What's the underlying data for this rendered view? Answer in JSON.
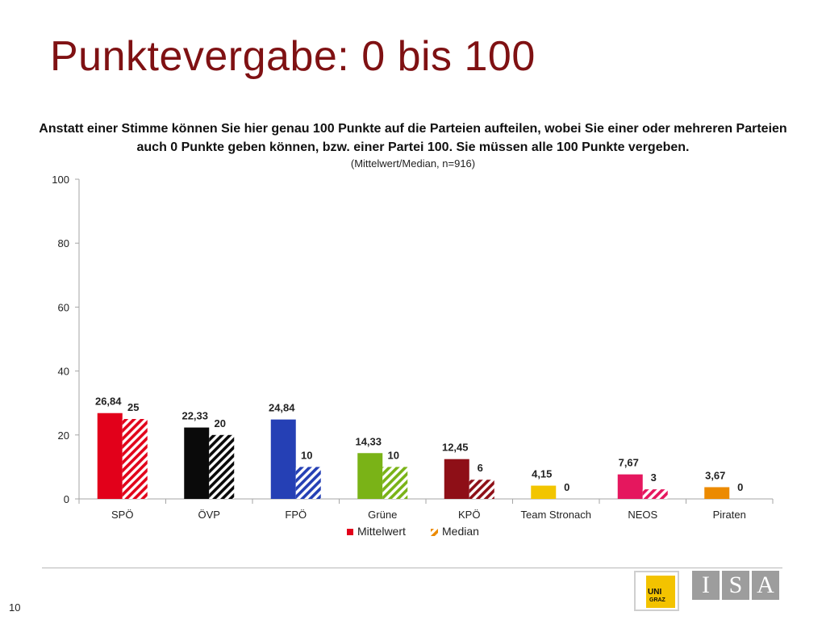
{
  "slide": {
    "title": "Punktevergabe: 0 bis 100",
    "page_number": "10"
  },
  "colors": {
    "title": "#7f1113",
    "series": [
      "#e2001a",
      "#0a0a0a",
      "#2540b5",
      "#7ab317",
      "#8e0f17",
      "#f2c500",
      "#e5175e",
      "#ec8a00"
    ]
  },
  "logos": {
    "uni": {
      "line1": "UNI",
      "line2": "GRAZ"
    },
    "isa": [
      "I",
      "S",
      "A"
    ]
  },
  "chart_data": {
    "type": "bar",
    "title": "Anstatt einer Stimme können Sie hier genau 100 Punkte auf die Parteien aufteilen, wobei Sie einer oder mehreren Parteien auch 0 Punkte geben können, bzw. einer Partei 100. Sie müssen alle 100 Punkte vergeben.",
    "subtitle": "(Mittelwert/Median, n=916)",
    "categories": [
      "SPÖ",
      "ÖVP",
      "FPÖ",
      "Grüne",
      "KPÖ",
      "Team Stronach",
      "NEOS",
      "Piraten"
    ],
    "series": [
      {
        "name": "Mittelwert",
        "values": [
          26.84,
          22.33,
          24.84,
          14.33,
          12.45,
          4.15,
          7.67,
          3.67
        ],
        "labels": [
          "26,84",
          "22,33",
          "24,84",
          "14,33",
          "12,45",
          "4,15",
          "7,67",
          "3,67"
        ],
        "style": "solid"
      },
      {
        "name": "Median",
        "values": [
          25,
          20,
          10,
          10,
          6,
          0,
          3,
          0
        ],
        "labels": [
          "25",
          "20",
          "10",
          "10",
          "6",
          "0",
          "3",
          "0"
        ],
        "style": "hatched"
      }
    ],
    "ylim": [
      0,
      100
    ],
    "yticks": [
      "0",
      "20",
      "40",
      "60",
      "80",
      "100"
    ],
    "grid": false,
    "legend": "bottom"
  }
}
